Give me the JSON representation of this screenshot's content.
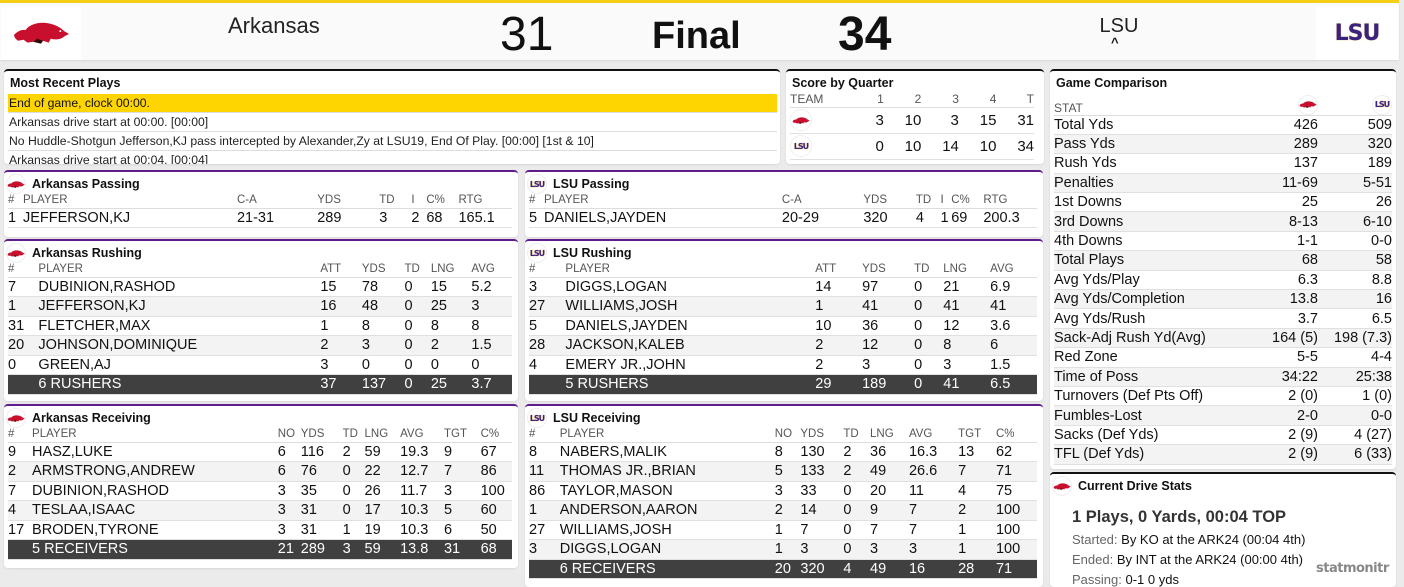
{
  "colors": {
    "accent_yellow": "#fed500",
    "header_border": "#f5cf16",
    "purple": "#5d1d8c",
    "razorback_red": "#c8102e",
    "lsu_purple": "#3b2181",
    "total_row": "#404040"
  },
  "header": {
    "away_team": {
      "name": "Arkansas",
      "score": "31",
      "logo_icon": "razorback-icon"
    },
    "status": "Final",
    "home_team": {
      "name": "LSU",
      "score": "34",
      "logo_text": "LSU",
      "possession_indicator": "^"
    }
  },
  "most_recent_plays": {
    "title": "Most Recent Plays",
    "plays": [
      "End of game, clock 00:00.",
      "Arkansas drive start at 00:00. [00:00]",
      "No Huddle-Shotgun Jefferson,KJ pass intercepted by Alexander,Zy at LSU19, End Of Play. [00:00] [1st & 10]",
      "Arkansas drive start at 00:04. [00:04]"
    ]
  },
  "score_by_quarter": {
    "title": "Score by Quarter",
    "headers": [
      "TEAM",
      "1",
      "2",
      "3",
      "4",
      "T"
    ],
    "rows": [
      {
        "team": "Arkansas",
        "scores": [
          "3",
          "10",
          "3",
          "15",
          "31"
        ]
      },
      {
        "team": "LSU",
        "scores": [
          "0",
          "10",
          "14",
          "10",
          "34"
        ]
      }
    ]
  },
  "arkansas_passing": {
    "title": "Arkansas Passing",
    "headers": [
      "#",
      "PLAYER",
      "C-A",
      "YDS",
      "TD",
      "I",
      "C%",
      "RTG"
    ],
    "rows": [
      [
        "1",
        "JEFFERSON,KJ",
        "21-31",
        "289",
        "3",
        "2",
        "68",
        "165.1"
      ]
    ]
  },
  "lsu_passing": {
    "title": "LSU Passing",
    "headers": [
      "#",
      "PLAYER",
      "C-A",
      "YDS",
      "TD",
      "I",
      "C%",
      "RTG"
    ],
    "rows": [
      [
        "5",
        "DANIELS,JAYDEN",
        "20-29",
        "320",
        "4",
        "1",
        "69",
        "200.3"
      ]
    ]
  },
  "arkansas_rushing": {
    "title": "Arkansas Rushing",
    "headers": [
      "#",
      "PLAYER",
      "ATT",
      "YDS",
      "TD",
      "LNG",
      "AVG"
    ],
    "rows": [
      [
        "7",
        "DUBINION,RASHOD",
        "15",
        "78",
        "0",
        "15",
        "5.2"
      ],
      [
        "1",
        "JEFFERSON,KJ",
        "16",
        "48",
        "0",
        "25",
        "3"
      ],
      [
        "31",
        "FLETCHER,MAX",
        "1",
        "8",
        "0",
        "8",
        "8"
      ],
      [
        "20",
        "JOHNSON,DOMINIQUE",
        "2",
        "3",
        "0",
        "2",
        "1.5"
      ],
      [
        "0",
        "GREEN,AJ",
        "3",
        "0",
        "0",
        "0",
        "0"
      ]
    ],
    "total": [
      "",
      "6 RUSHERS",
      "37",
      "137",
      "0",
      "25",
      "3.7"
    ]
  },
  "lsu_rushing": {
    "title": "LSU Rushing",
    "headers": [
      "#",
      "PLAYER",
      "ATT",
      "YDS",
      "TD",
      "LNG",
      "AVG"
    ],
    "rows": [
      [
        "3",
        "DIGGS,LOGAN",
        "14",
        "97",
        "0",
        "21",
        "6.9"
      ],
      [
        "27",
        "WILLIAMS,JOSH",
        "1",
        "41",
        "0",
        "41",
        "41"
      ],
      [
        "5",
        "DANIELS,JAYDEN",
        "10",
        "36",
        "0",
        "12",
        "3.6"
      ],
      [
        "28",
        "JACKSON,KALEB",
        "2",
        "12",
        "0",
        "8",
        "6"
      ],
      [
        "4",
        "EMERY JR.,JOHN",
        "2",
        "3",
        "0",
        "3",
        "1.5"
      ]
    ],
    "total": [
      "",
      "5 RUSHERS",
      "29",
      "189",
      "0",
      "41",
      "6.5"
    ]
  },
  "arkansas_receiving": {
    "title": "Arkansas Receiving",
    "headers": [
      "#",
      "PLAYER",
      "NO",
      "YDS",
      "TD",
      "LNG",
      "AVG",
      "TGT",
      "C%"
    ],
    "rows": [
      [
        "9",
        "HASZ,LUKE",
        "6",
        "116",
        "2",
        "59",
        "19.3",
        "9",
        "67"
      ],
      [
        "2",
        "ARMSTRONG,ANDREW",
        "6",
        "76",
        "0",
        "22",
        "12.7",
        "7",
        "86"
      ],
      [
        "7",
        "DUBINION,RASHOD",
        "3",
        "35",
        "0",
        "26",
        "11.7",
        "3",
        "100"
      ],
      [
        "4",
        "TESLAA,ISAAC",
        "3",
        "31",
        "0",
        "17",
        "10.3",
        "5",
        "60"
      ],
      [
        "17",
        "BRODEN,TYRONE",
        "3",
        "31",
        "1",
        "19",
        "10.3",
        "6",
        "50"
      ]
    ],
    "total": [
      "",
      "5 RECEIVERS",
      "21",
      "289",
      "3",
      "59",
      "13.8",
      "31",
      "68"
    ]
  },
  "lsu_receiving": {
    "title": "LSU Receiving",
    "headers": [
      "#",
      "PLAYER",
      "NO",
      "YDS",
      "TD",
      "LNG",
      "AVG",
      "TGT",
      "C%"
    ],
    "rows": [
      [
        "8",
        "NABERS,MALIK",
        "8",
        "130",
        "2",
        "36",
        "16.3",
        "13",
        "62"
      ],
      [
        "11",
        "THOMAS JR.,BRIAN",
        "5",
        "133",
        "2",
        "49",
        "26.6",
        "7",
        "71"
      ],
      [
        "86",
        "TAYLOR,MASON",
        "3",
        "33",
        "0",
        "20",
        "11",
        "4",
        "75"
      ],
      [
        "1",
        "ANDERSON,AARON",
        "2",
        "14",
        "0",
        "9",
        "7",
        "2",
        "100"
      ],
      [
        "27",
        "WILLIAMS,JOSH",
        "1",
        "7",
        "0",
        "7",
        "7",
        "1",
        "100"
      ],
      [
        "3",
        "DIGGS,LOGAN",
        "1",
        "3",
        "0",
        "3",
        "3",
        "1",
        "100"
      ]
    ],
    "total": [
      "",
      "6 RECEIVERS",
      "20",
      "320",
      "4",
      "49",
      "16",
      "28",
      "71"
    ]
  },
  "game_comparison": {
    "title": "Game Comparison",
    "stat_header": "STAT",
    "rows": [
      [
        "Total Yds",
        "426",
        "509"
      ],
      [
        "Pass Yds",
        "289",
        "320"
      ],
      [
        "Rush Yds",
        "137",
        "189"
      ],
      [
        "Penalties",
        "11-69",
        "5-51"
      ],
      [
        "1st Downs",
        "25",
        "26"
      ],
      [
        "3rd Downs",
        "8-13",
        "6-10"
      ],
      [
        "4th Downs",
        "1-1",
        "0-0"
      ],
      [
        "Total Plays",
        "68",
        "58"
      ],
      [
        "Avg Yds/Play",
        "6.3",
        "8.8"
      ],
      [
        "Avg Yds/Completion",
        "13.8",
        "16"
      ],
      [
        "Avg Yds/Rush",
        "3.7",
        "6.5"
      ],
      [
        "Sack-Adj Rush Yd(Avg)",
        "164 (5)",
        "198 (7.3)"
      ],
      [
        "Red Zone",
        "5-5",
        "4-4"
      ],
      [
        "Time of Poss",
        "34:22",
        "25:38"
      ],
      [
        "Turnovers (Def Pts Off)",
        "2 (0)",
        "1 (0)"
      ],
      [
        "Fumbles-Lost",
        "2-0",
        "0-0"
      ],
      [
        "Sacks (Def Yds)",
        "2 (9)",
        "4 (27)"
      ],
      [
        "TFL (Def Yds)",
        "2 (9)",
        "6 (33)"
      ]
    ]
  },
  "current_drive": {
    "title": "Current Drive Stats",
    "summary": "1 Plays, 0 Yards, 00:04 TOP",
    "started_label": "Started:",
    "started_value": " By KO at the ARK24 (00:04 4th)",
    "ended_label": "Ended:",
    "ended_value": " By INT at the ARK24 (00:00 4th)",
    "passing_label": "Passing:",
    "passing_value": " 0-1 0 yds"
  },
  "watermark": "statmonitr"
}
